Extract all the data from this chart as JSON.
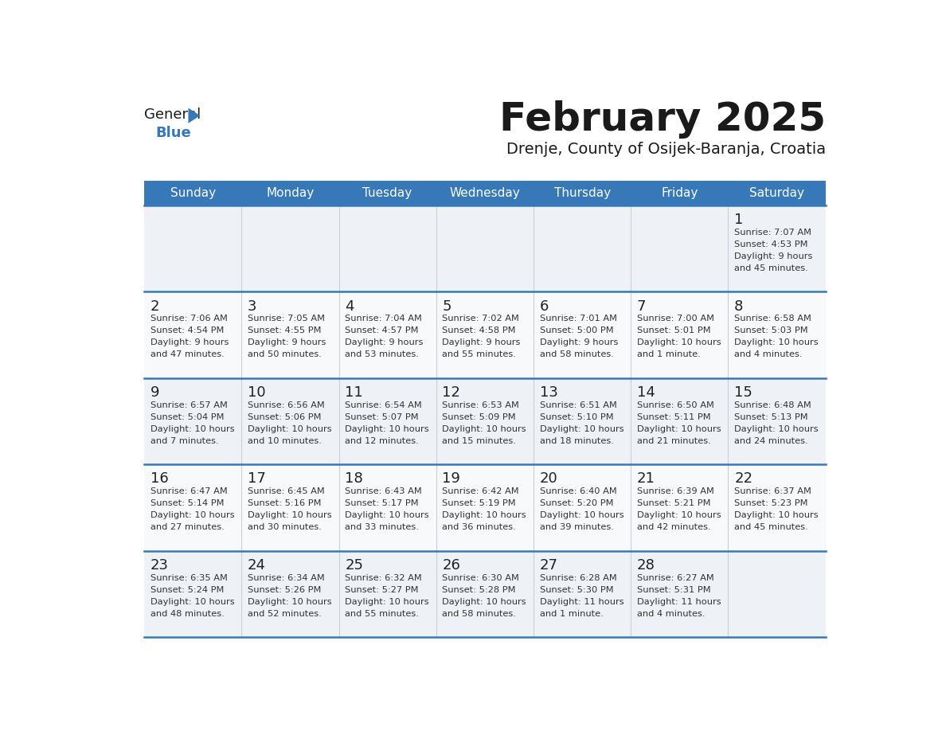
{
  "title": "February 2025",
  "subtitle": "Drenje, County of Osijek-Baranja, Croatia",
  "days_of_week": [
    "Sunday",
    "Monday",
    "Tuesday",
    "Wednesday",
    "Thursday",
    "Friday",
    "Saturday"
  ],
  "header_bg": "#3778b8",
  "header_text": "#ffffff",
  "cell_bg_odd": "#eef1f5",
  "cell_bg_even": "#f8f9fb",
  "border_color": "#3778b8",
  "grid_color": "#c8d0da",
  "day_num_color": "#222222",
  "cell_text_color": "#333333",
  "title_color": "#1a1a1a",
  "subtitle_color": "#1a1a1a",
  "logo_general_color": "#1a1a1a",
  "logo_blue_color": "#3778b8",
  "logo_triangle_color": "#3778b8",
  "weeks": [
    [
      {
        "day": null,
        "info": null
      },
      {
        "day": null,
        "info": null
      },
      {
        "day": null,
        "info": null
      },
      {
        "day": null,
        "info": null
      },
      {
        "day": null,
        "info": null
      },
      {
        "day": null,
        "info": null
      },
      {
        "day": 1,
        "info": "Sunrise: 7:07 AM\nSunset: 4:53 PM\nDaylight: 9 hours\nand 45 minutes."
      }
    ],
    [
      {
        "day": 2,
        "info": "Sunrise: 7:06 AM\nSunset: 4:54 PM\nDaylight: 9 hours\nand 47 minutes."
      },
      {
        "day": 3,
        "info": "Sunrise: 7:05 AM\nSunset: 4:55 PM\nDaylight: 9 hours\nand 50 minutes."
      },
      {
        "day": 4,
        "info": "Sunrise: 7:04 AM\nSunset: 4:57 PM\nDaylight: 9 hours\nand 53 minutes."
      },
      {
        "day": 5,
        "info": "Sunrise: 7:02 AM\nSunset: 4:58 PM\nDaylight: 9 hours\nand 55 minutes."
      },
      {
        "day": 6,
        "info": "Sunrise: 7:01 AM\nSunset: 5:00 PM\nDaylight: 9 hours\nand 58 minutes."
      },
      {
        "day": 7,
        "info": "Sunrise: 7:00 AM\nSunset: 5:01 PM\nDaylight: 10 hours\nand 1 minute."
      },
      {
        "day": 8,
        "info": "Sunrise: 6:58 AM\nSunset: 5:03 PM\nDaylight: 10 hours\nand 4 minutes."
      }
    ],
    [
      {
        "day": 9,
        "info": "Sunrise: 6:57 AM\nSunset: 5:04 PM\nDaylight: 10 hours\nand 7 minutes."
      },
      {
        "day": 10,
        "info": "Sunrise: 6:56 AM\nSunset: 5:06 PM\nDaylight: 10 hours\nand 10 minutes."
      },
      {
        "day": 11,
        "info": "Sunrise: 6:54 AM\nSunset: 5:07 PM\nDaylight: 10 hours\nand 12 minutes."
      },
      {
        "day": 12,
        "info": "Sunrise: 6:53 AM\nSunset: 5:09 PM\nDaylight: 10 hours\nand 15 minutes."
      },
      {
        "day": 13,
        "info": "Sunrise: 6:51 AM\nSunset: 5:10 PM\nDaylight: 10 hours\nand 18 minutes."
      },
      {
        "day": 14,
        "info": "Sunrise: 6:50 AM\nSunset: 5:11 PM\nDaylight: 10 hours\nand 21 minutes."
      },
      {
        "day": 15,
        "info": "Sunrise: 6:48 AM\nSunset: 5:13 PM\nDaylight: 10 hours\nand 24 minutes."
      }
    ],
    [
      {
        "day": 16,
        "info": "Sunrise: 6:47 AM\nSunset: 5:14 PM\nDaylight: 10 hours\nand 27 minutes."
      },
      {
        "day": 17,
        "info": "Sunrise: 6:45 AM\nSunset: 5:16 PM\nDaylight: 10 hours\nand 30 minutes."
      },
      {
        "day": 18,
        "info": "Sunrise: 6:43 AM\nSunset: 5:17 PM\nDaylight: 10 hours\nand 33 minutes."
      },
      {
        "day": 19,
        "info": "Sunrise: 6:42 AM\nSunset: 5:19 PM\nDaylight: 10 hours\nand 36 minutes."
      },
      {
        "day": 20,
        "info": "Sunrise: 6:40 AM\nSunset: 5:20 PM\nDaylight: 10 hours\nand 39 minutes."
      },
      {
        "day": 21,
        "info": "Sunrise: 6:39 AM\nSunset: 5:21 PM\nDaylight: 10 hours\nand 42 minutes."
      },
      {
        "day": 22,
        "info": "Sunrise: 6:37 AM\nSunset: 5:23 PM\nDaylight: 10 hours\nand 45 minutes."
      }
    ],
    [
      {
        "day": 23,
        "info": "Sunrise: 6:35 AM\nSunset: 5:24 PM\nDaylight: 10 hours\nand 48 minutes."
      },
      {
        "day": 24,
        "info": "Sunrise: 6:34 AM\nSunset: 5:26 PM\nDaylight: 10 hours\nand 52 minutes."
      },
      {
        "day": 25,
        "info": "Sunrise: 6:32 AM\nSunset: 5:27 PM\nDaylight: 10 hours\nand 55 minutes."
      },
      {
        "day": 26,
        "info": "Sunrise: 6:30 AM\nSunset: 5:28 PM\nDaylight: 10 hours\nand 58 minutes."
      },
      {
        "day": 27,
        "info": "Sunrise: 6:28 AM\nSunset: 5:30 PM\nDaylight: 11 hours\nand 1 minute."
      },
      {
        "day": 28,
        "info": "Sunrise: 6:27 AM\nSunset: 5:31 PM\nDaylight: 11 hours\nand 4 minutes."
      },
      {
        "day": null,
        "info": null
      }
    ]
  ]
}
